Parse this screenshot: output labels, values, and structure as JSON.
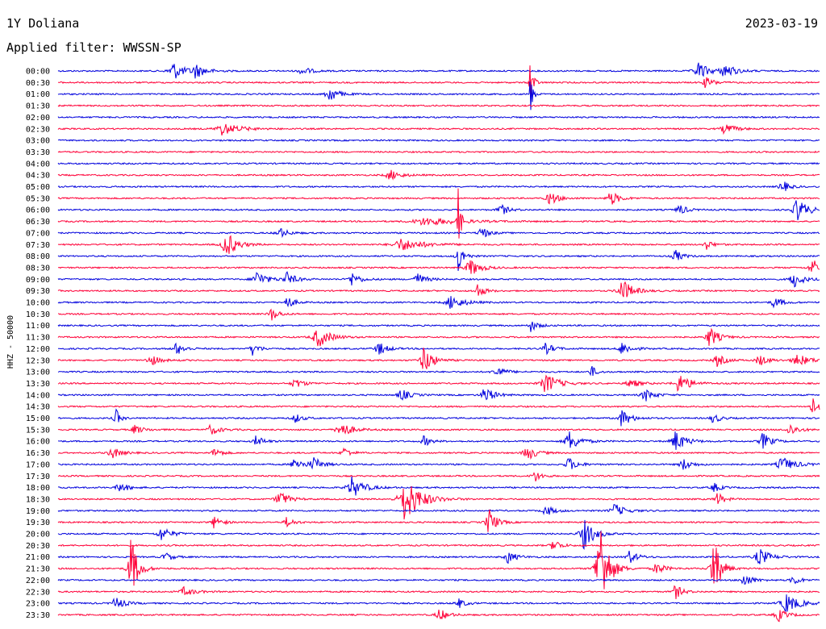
{
  "header": {
    "station": "1Y Doliana",
    "date": "2023-03-19",
    "filter": "Applied filter: WWSSN-SP"
  },
  "chart_data": {
    "type": "line",
    "title": "1Y Doliana",
    "date": "2023-03-19",
    "filter": "WWSSN-SP",
    "ylabel": "HHZ - 50000",
    "traces": [
      "00:00",
      "00:30",
      "01:00",
      "01:30",
      "02:00",
      "02:30",
      "03:00",
      "03:30",
      "04:00",
      "04:30",
      "05:00",
      "05:30",
      "06:00",
      "06:30",
      "07:00",
      "07:30",
      "08:00",
      "08:30",
      "09:00",
      "09:30",
      "10:00",
      "10:30",
      "11:00",
      "11:30",
      "12:00",
      "12:30",
      "13:00",
      "13:30",
      "14:00",
      "14:30",
      "15:00",
      "15:30",
      "16:00",
      "16:30",
      "17:00",
      "17:30",
      "18:00",
      "18:30",
      "19:00",
      "19:30",
      "20:00",
      "20:30",
      "21:00",
      "21:30",
      "22:00",
      "22:30",
      "23:00",
      "23:30"
    ],
    "colors": {
      "even": "#0000dd",
      "odd": "#ff0038"
    },
    "events": [
      {
        "trace": "00:00",
        "x": 0.15,
        "amp": 13,
        "w": 0.012
      },
      {
        "trace": "00:00",
        "x": 0.18,
        "amp": 9,
        "w": 0.012
      },
      {
        "trace": "00:00",
        "x": 0.32,
        "amp": 6,
        "w": 0.01
      },
      {
        "trace": "00:00",
        "x": 0.84,
        "amp": 12,
        "w": 0.012
      },
      {
        "trace": "00:00",
        "x": 0.875,
        "amp": 10,
        "w": 0.012
      },
      {
        "trace": "00:30",
        "x": 0.62,
        "amp": 45,
        "w": 0.003
      },
      {
        "trace": "00:30",
        "x": 0.85,
        "amp": 7,
        "w": 0.01
      },
      {
        "trace": "01:00",
        "x": 0.355,
        "amp": 12,
        "w": 0.01
      },
      {
        "trace": "01:00",
        "x": 0.62,
        "amp": 30,
        "w": 0.003
      },
      {
        "trace": "02:30",
        "x": 0.215,
        "amp": 8,
        "w": 0.02
      },
      {
        "trace": "02:30",
        "x": 0.875,
        "amp": 7,
        "w": 0.012
      },
      {
        "trace": "04:30",
        "x": 0.435,
        "amp": 7,
        "w": 0.012
      },
      {
        "trace": "05:00",
        "x": 0.95,
        "amp": 9,
        "w": 0.008
      },
      {
        "trace": "05:30",
        "x": 0.645,
        "amp": 9,
        "w": 0.01
      },
      {
        "trace": "05:30",
        "x": 0.725,
        "amp": 10,
        "w": 0.01
      },
      {
        "trace": "06:00",
        "x": 0.58,
        "amp": 9,
        "w": 0.008
      },
      {
        "trace": "06:00",
        "x": 0.815,
        "amp": 8,
        "w": 0.008
      },
      {
        "trace": "06:00",
        "x": 0.97,
        "amp": 16,
        "w": 0.012
      },
      {
        "trace": "06:30",
        "x": 0.48,
        "amp": 5,
        "w": 0.04
      },
      {
        "trace": "06:30",
        "x": 0.525,
        "amp": 45,
        "w": 0.003
      },
      {
        "trace": "07:00",
        "x": 0.29,
        "amp": 7,
        "w": 0.01
      },
      {
        "trace": "07:00",
        "x": 0.555,
        "amp": 9,
        "w": 0.008
      },
      {
        "trace": "07:30",
        "x": 0.22,
        "amp": 18,
        "w": 0.012
      },
      {
        "trace": "07:30",
        "x": 0.45,
        "amp": 8,
        "w": 0.025
      },
      {
        "trace": "07:30",
        "x": 0.85,
        "amp": 7,
        "w": 0.008
      },
      {
        "trace": "08:00",
        "x": 0.525,
        "amp": 22,
        "w": 0.006
      },
      {
        "trace": "08:00",
        "x": 0.81,
        "amp": 9,
        "w": 0.008
      },
      {
        "trace": "08:30",
        "x": 0.54,
        "amp": 12,
        "w": 0.012
      },
      {
        "trace": "08:30",
        "x": 0.99,
        "amp": 12,
        "w": 0.01
      },
      {
        "trace": "09:00",
        "x": 0.26,
        "amp": 11,
        "w": 0.012
      },
      {
        "trace": "09:00",
        "x": 0.3,
        "amp": 9,
        "w": 0.01
      },
      {
        "trace": "09:00",
        "x": 0.385,
        "amp": 9,
        "w": 0.01
      },
      {
        "trace": "09:00",
        "x": 0.47,
        "amp": 9,
        "w": 0.01
      },
      {
        "trace": "09:00",
        "x": 0.965,
        "amp": 12,
        "w": 0.01
      },
      {
        "trace": "09:30",
        "x": 0.55,
        "amp": 10,
        "w": 0.008
      },
      {
        "trace": "09:30",
        "x": 0.74,
        "amp": 16,
        "w": 0.012
      },
      {
        "trace": "10:00",
        "x": 0.3,
        "amp": 9,
        "w": 0.008
      },
      {
        "trace": "10:00",
        "x": 0.515,
        "amp": 9,
        "w": 0.015
      },
      {
        "trace": "10:00",
        "x": 0.94,
        "amp": 7,
        "w": 0.01
      },
      {
        "trace": "10:30",
        "x": 0.28,
        "amp": 9,
        "w": 0.008
      },
      {
        "trace": "11:00",
        "x": 0.62,
        "amp": 8,
        "w": 0.008
      },
      {
        "trace": "11:30",
        "x": 0.34,
        "amp": 14,
        "w": 0.014
      },
      {
        "trace": "11:30",
        "x": 0.855,
        "amp": 14,
        "w": 0.01
      },
      {
        "trace": "12:00",
        "x": 0.155,
        "amp": 8,
        "w": 0.01
      },
      {
        "trace": "12:00",
        "x": 0.255,
        "amp": 8,
        "w": 0.008
      },
      {
        "trace": "12:00",
        "x": 0.42,
        "amp": 9,
        "w": 0.01
      },
      {
        "trace": "12:00",
        "x": 0.64,
        "amp": 7,
        "w": 0.01
      },
      {
        "trace": "12:00",
        "x": 0.74,
        "amp": 9,
        "w": 0.01
      },
      {
        "trace": "12:30",
        "x": 0.12,
        "amp": 8,
        "w": 0.01
      },
      {
        "trace": "12:30",
        "x": 0.48,
        "amp": 20,
        "w": 0.01
      },
      {
        "trace": "12:30",
        "x": 0.865,
        "amp": 8,
        "w": 0.01
      },
      {
        "trace": "12:30",
        "x": 0.92,
        "amp": 8,
        "w": 0.01
      },
      {
        "trace": "12:30",
        "x": 0.97,
        "amp": 8,
        "w": 0.015
      },
      {
        "trace": "13:00",
        "x": 0.575,
        "amp": 8,
        "w": 0.01
      },
      {
        "trace": "13:00",
        "x": 0.7,
        "amp": 8,
        "w": 0.006
      },
      {
        "trace": "13:30",
        "x": 0.64,
        "amp": 14,
        "w": 0.014
      },
      {
        "trace": "13:30",
        "x": 0.815,
        "amp": 14,
        "w": 0.012
      },
      {
        "trace": "13:30",
        "x": 0.75,
        "amp": 7,
        "w": 0.01
      },
      {
        "trace": "13:30",
        "x": 0.31,
        "amp": 7,
        "w": 0.01
      },
      {
        "trace": "14:00",
        "x": 0.45,
        "amp": 8,
        "w": 0.01
      },
      {
        "trace": "14:00",
        "x": 0.56,
        "amp": 12,
        "w": 0.01
      },
      {
        "trace": "14:00",
        "x": 0.77,
        "amp": 9,
        "w": 0.01
      },
      {
        "trace": "14:30",
        "x": 0.99,
        "amp": 12,
        "w": 0.008
      },
      {
        "trace": "15:00",
        "x": 0.075,
        "amp": 14,
        "w": 0.005
      },
      {
        "trace": "15:00",
        "x": 0.31,
        "amp": 7,
        "w": 0.008
      },
      {
        "trace": "15:00",
        "x": 0.74,
        "amp": 12,
        "w": 0.01
      },
      {
        "trace": "15:00",
        "x": 0.86,
        "amp": 7,
        "w": 0.008
      },
      {
        "trace": "15:30",
        "x": 0.37,
        "amp": 12,
        "w": 0.012
      },
      {
        "trace": "15:30",
        "x": 0.2,
        "amp": 7,
        "w": 0.01
      },
      {
        "trace": "15:30",
        "x": 0.1,
        "amp": 6,
        "w": 0.01
      },
      {
        "trace": "15:30",
        "x": 0.96,
        "amp": 8,
        "w": 0.01
      },
      {
        "trace": "16:00",
        "x": 0.26,
        "amp": 8,
        "w": 0.008
      },
      {
        "trace": "16:00",
        "x": 0.48,
        "amp": 7,
        "w": 0.008
      },
      {
        "trace": "16:00",
        "x": 0.67,
        "amp": 14,
        "w": 0.012
      },
      {
        "trace": "16:00",
        "x": 0.81,
        "amp": 14,
        "w": 0.012
      },
      {
        "trace": "16:00",
        "x": 0.925,
        "amp": 11,
        "w": 0.01
      },
      {
        "trace": "16:30",
        "x": 0.07,
        "amp": 8,
        "w": 0.01
      },
      {
        "trace": "16:30",
        "x": 0.205,
        "amp": 7,
        "w": 0.008
      },
      {
        "trace": "16:30",
        "x": 0.375,
        "amp": 7,
        "w": 0.008
      },
      {
        "trace": "16:30",
        "x": 0.615,
        "amp": 11,
        "w": 0.01
      },
      {
        "trace": "17:00",
        "x": 0.31,
        "amp": 9,
        "w": 0.01
      },
      {
        "trace": "17:00",
        "x": 0.335,
        "amp": 9,
        "w": 0.01
      },
      {
        "trace": "17:00",
        "x": 0.67,
        "amp": 9,
        "w": 0.01
      },
      {
        "trace": "17:00",
        "x": 0.82,
        "amp": 8,
        "w": 0.01
      },
      {
        "trace": "17:00",
        "x": 0.95,
        "amp": 10,
        "w": 0.015
      },
      {
        "trace": "17:30",
        "x": 0.625,
        "amp": 8,
        "w": 0.008
      },
      {
        "trace": "18:00",
        "x": 0.08,
        "amp": 7,
        "w": 0.01
      },
      {
        "trace": "18:00",
        "x": 0.385,
        "amp": 14,
        "w": 0.014
      },
      {
        "trace": "18:00",
        "x": 0.86,
        "amp": 7,
        "w": 0.008
      },
      {
        "trace": "18:30",
        "x": 0.455,
        "amp": 30,
        "w": 0.018
      },
      {
        "trace": "18:30",
        "x": 0.29,
        "amp": 12,
        "w": 0.01
      },
      {
        "trace": "18:30",
        "x": 0.865,
        "amp": 9,
        "w": 0.008
      },
      {
        "trace": "19:00",
        "x": 0.64,
        "amp": 7,
        "w": 0.01
      },
      {
        "trace": "19:00",
        "x": 0.73,
        "amp": 9,
        "w": 0.012
      },
      {
        "trace": "19:30",
        "x": 0.565,
        "amp": 20,
        "w": 0.008
      },
      {
        "trace": "19:30",
        "x": 0.205,
        "amp": 9,
        "w": 0.008
      },
      {
        "trace": "19:30",
        "x": 0.3,
        "amp": 7,
        "w": 0.008
      },
      {
        "trace": "20:00",
        "x": 0.135,
        "amp": 9,
        "w": 0.012
      },
      {
        "trace": "20:00",
        "x": 0.69,
        "amp": 20,
        "w": 0.012
      },
      {
        "trace": "20:30",
        "x": 0.65,
        "amp": 9,
        "w": 0.008
      },
      {
        "trace": "21:00",
        "x": 0.14,
        "amp": 7,
        "w": 0.008
      },
      {
        "trace": "21:00",
        "x": 0.59,
        "amp": 8,
        "w": 0.01
      },
      {
        "trace": "21:00",
        "x": 0.75,
        "amp": 8,
        "w": 0.01
      },
      {
        "trace": "21:00",
        "x": 0.92,
        "amp": 12,
        "w": 0.012
      },
      {
        "trace": "21:30",
        "x": 0.095,
        "amp": 45,
        "w": 0.008
      },
      {
        "trace": "21:30",
        "x": 0.71,
        "amp": 75,
        "w": 0.01
      },
      {
        "trace": "21:30",
        "x": 0.86,
        "amp": 45,
        "w": 0.008
      },
      {
        "trace": "21:30",
        "x": 0.785,
        "amp": 8,
        "w": 0.01
      },
      {
        "trace": "22:00",
        "x": 0.9,
        "amp": 9,
        "w": 0.01
      },
      {
        "trace": "22:00",
        "x": 0.965,
        "amp": 7,
        "w": 0.008
      },
      {
        "trace": "22:30",
        "x": 0.165,
        "amp": 6,
        "w": 0.012
      },
      {
        "trace": "22:30",
        "x": 0.81,
        "amp": 10,
        "w": 0.008
      },
      {
        "trace": "23:00",
        "x": 0.075,
        "amp": 9,
        "w": 0.01
      },
      {
        "trace": "23:00",
        "x": 0.525,
        "amp": 7,
        "w": 0.008
      },
      {
        "trace": "23:00",
        "x": 0.955,
        "amp": 13,
        "w": 0.015
      },
      {
        "trace": "23:30",
        "x": 0.5,
        "amp": 8,
        "w": 0.01
      },
      {
        "trace": "23:30",
        "x": 0.945,
        "amp": 9,
        "w": 0.01
      }
    ]
  }
}
